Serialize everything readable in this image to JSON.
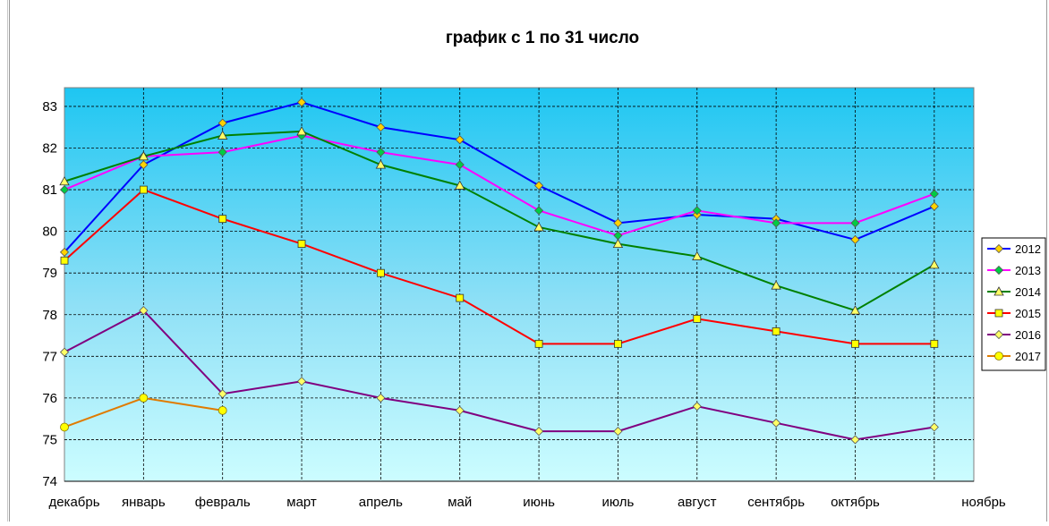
{
  "chart_data": {
    "type": "line",
    "title": "график с 1 по 31 число",
    "xlabel": "",
    "ylabel": "",
    "categories": [
      "декабрь",
      "январь",
      "февраль",
      "март",
      "апрель",
      "май",
      "июнь",
      "июль",
      "август",
      "сентябрь",
      "октябрь",
      "ноябрь"
    ],
    "ylim": [
      74,
      83.45
    ],
    "yticks": [
      74,
      75,
      76,
      77,
      78,
      79,
      80,
      81,
      82,
      83
    ],
    "grid": true,
    "legend": "right",
    "series": [
      {
        "name": "2012",
        "color": "#0000ff",
        "marker": "diamond",
        "marker_color": "#ffd200",
        "values": [
          79.5,
          81.6,
          82.6,
          83.1,
          82.5,
          82.2,
          81.1,
          80.2,
          80.4,
          80.3,
          79.8,
          80.6
        ]
      },
      {
        "name": "2013",
        "color": "#ff00ff",
        "marker": "diamond",
        "marker_color": "#00cc44",
        "values": [
          81.0,
          81.8,
          81.9,
          82.3,
          81.9,
          81.6,
          80.5,
          79.9,
          80.5,
          80.2,
          80.2,
          80.9
        ]
      },
      {
        "name": "2014",
        "color": "#008000",
        "marker": "triangle",
        "marker_color": "#ffff66",
        "values": [
          81.2,
          81.8,
          82.3,
          82.4,
          81.6,
          81.1,
          80.1,
          79.7,
          79.4,
          78.7,
          78.1,
          79.2
        ]
      },
      {
        "name": "2015",
        "color": "#ff0000",
        "marker": "square",
        "marker_color": "#ffff00",
        "values": [
          79.3,
          81.0,
          80.3,
          79.7,
          79.0,
          78.4,
          77.3,
          77.3,
          77.9,
          77.6,
          77.3,
          77.3
        ]
      },
      {
        "name": "2016",
        "color": "#800080",
        "marker": "diamond",
        "marker_color": "#ffff66",
        "values": [
          77.1,
          78.1,
          76.1,
          76.4,
          76.0,
          75.7,
          75.2,
          75.2,
          75.8,
          75.4,
          75.0,
          75.3
        ]
      },
      {
        "name": "2017",
        "color": "#e07b00",
        "marker": "circle",
        "marker_color": "#ffff00",
        "values": [
          75.3,
          76.0,
          75.7,
          null,
          null,
          null,
          null,
          null,
          null,
          null,
          null,
          null
        ]
      }
    ]
  }
}
